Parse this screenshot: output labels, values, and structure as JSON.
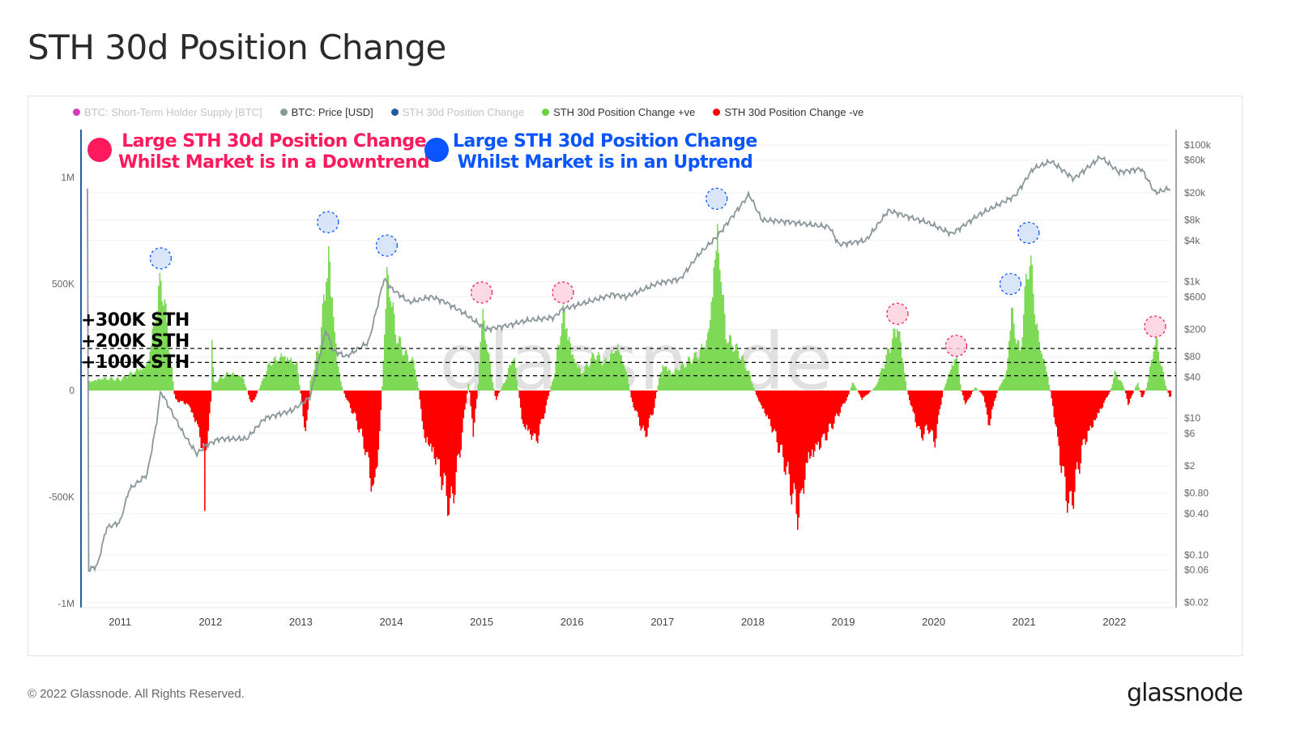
{
  "title": "STH 30d Position Change",
  "legend": [
    {
      "label": "BTC: Short-Term Holder Supply [BTC]",
      "color": "#d63bbd",
      "active": false
    },
    {
      "label": "BTC: Price [USD]",
      "color": "#8a979b",
      "active": true
    },
    {
      "label": "STH 30d Position Change",
      "color": "#1f5c9c",
      "active": false
    },
    {
      "label": "STH 30d Position Change +ve",
      "color": "#6ad13f",
      "active": true
    },
    {
      "label": "STH 30d Position Change -ve",
      "color": "#ff0000",
      "active": true
    }
  ],
  "annotations": {
    "downtrend": {
      "line1": "Large STH 30d Position Change",
      "line2": "Whilst Market is in a Downtrend",
      "color": "#ff1a5e"
    },
    "uptrend": {
      "line1": "Large STH 30d Position Change",
      "line2": "Whilst Market is in an Uptrend",
      "color": "#0a55ff"
    }
  },
  "reference_lines": [
    {
      "label": "+300K STH",
      "value": 300000
    },
    {
      "label": "+200K STH",
      "value": 200000
    },
    {
      "label": "+100K STH",
      "value": 100000
    }
  ],
  "watermark": "glassnode",
  "footer": "© 2022 Glassnode. All Rights Reserved.",
  "logo": "glassnode",
  "chart_data": {
    "type": "area",
    "title": "STH 30d Position Change",
    "x_range": [
      2010.64,
      2022.62
    ],
    "x_ticks": [
      "2011",
      "2012",
      "2013",
      "2014",
      "2015",
      "2016",
      "2017",
      "2018",
      "2019",
      "2020",
      "2021",
      "2022"
    ],
    "y_left": {
      "range": [
        -1000000,
        1000000
      ],
      "ticks": [
        {
          "v": 1000000,
          "label": "1M"
        },
        {
          "v": 500000,
          "label": "500K"
        },
        {
          "v": 0,
          "label": "0"
        },
        {
          "v": -500000,
          "label": "-500K"
        },
        {
          "v": -1000000,
          "label": "-1M"
        }
      ]
    },
    "y_right": {
      "scale": "log",
      "range": [
        0.02,
        100000
      ],
      "ticks": [
        {
          "v": 100000,
          "label": "$100k"
        },
        {
          "v": 60000,
          "label": "$60k"
        },
        {
          "v": 20000,
          "label": "$20k"
        },
        {
          "v": 8000,
          "label": "$8k"
        },
        {
          "v": 4000,
          "label": "$4k"
        },
        {
          "v": 1000,
          "label": "$1k"
        },
        {
          "v": 600,
          "label": "$600"
        },
        {
          "v": 200,
          "label": "$200"
        },
        {
          "v": 80,
          "label": "$80"
        },
        {
          "v": 40,
          "label": "$40"
        },
        {
          "v": 10,
          "label": "$10"
        },
        {
          "v": 6,
          "label": "$6"
        },
        {
          "v": 2,
          "label": "$2"
        },
        {
          "v": 0.8,
          "label": "$0.80"
        },
        {
          "v": 0.4,
          "label": "$0.40"
        },
        {
          "v": 0.1,
          "label": "$0.10"
        },
        {
          "v": 0.06,
          "label": "$0.06"
        },
        {
          "v": 0.02,
          "label": "$0.02"
        }
      ]
    },
    "grid": true,
    "legend_position": "top-left",
    "position_change": [
      [
        2010.65,
        50
      ],
      [
        2010.8,
        70
      ],
      [
        2011.0,
        60
      ],
      [
        2011.3,
        150
      ],
      [
        2011.45,
        620
      ],
      [
        2011.55,
        200
      ],
      [
        2011.6,
        -50
      ],
      [
        2011.75,
        -80
      ],
      [
        2011.85,
        -200
      ],
      [
        2011.92,
        -350
      ],
      [
        2011.93,
        -780
      ],
      [
        2011.94,
        -350
      ],
      [
        2012.0,
        -60
      ],
      [
        2012.01,
        300
      ],
      [
        2012.03,
        40
      ],
      [
        2012.2,
        100
      ],
      [
        2012.35,
        80
      ],
      [
        2012.45,
        -80
      ],
      [
        2012.55,
        30
      ],
      [
        2012.65,
        150
      ],
      [
        2012.8,
        200
      ],
      [
        2012.95,
        150
      ],
      [
        2013.0,
        -50
      ],
      [
        2013.05,
        -250
      ],
      [
        2013.1,
        50
      ],
      [
        2013.2,
        250
      ],
      [
        2013.3,
        780
      ],
      [
        2013.4,
        150
      ],
      [
        2013.45,
        20
      ],
      [
        2013.5,
        -50
      ],
      [
        2013.6,
        -150
      ],
      [
        2013.7,
        -300
      ],
      [
        2013.8,
        -580
      ],
      [
        2013.86,
        -300
      ],
      [
        2013.9,
        100
      ],
      [
        2013.95,
        680
      ],
      [
        2014.05,
        300
      ],
      [
        2014.15,
        200
      ],
      [
        2014.25,
        150
      ],
      [
        2014.3,
        0
      ],
      [
        2014.35,
        -250
      ],
      [
        2014.5,
        -400
      ],
      [
        2014.65,
        -650
      ],
      [
        2014.75,
        -350
      ],
      [
        2014.8,
        -150
      ],
      [
        2014.85,
        50
      ],
      [
        2014.9,
        -250
      ],
      [
        2014.95,
        0
      ],
      [
        2015.0,
        450
      ],
      [
        2015.1,
        100
      ],
      [
        2015.15,
        -50
      ],
      [
        2015.25,
        50
      ],
      [
        2015.35,
        200
      ],
      [
        2015.4,
        0
      ],
      [
        2015.45,
        -200
      ],
      [
        2015.6,
        -280
      ],
      [
        2015.7,
        -100
      ],
      [
        2015.8,
        100
      ],
      [
        2015.9,
        450
      ],
      [
        2016.0,
        200
      ],
      [
        2016.1,
        100
      ],
      [
        2016.25,
        200
      ],
      [
        2016.35,
        150
      ],
      [
        2016.5,
        250
      ],
      [
        2016.6,
        100
      ],
      [
        2016.65,
        -50
      ],
      [
        2016.8,
        -250
      ],
      [
        2016.9,
        -100
      ],
      [
        2016.95,
        50
      ],
      [
        2017.0,
        150
      ],
      [
        2017.1,
        100
      ],
      [
        2017.25,
        150
      ],
      [
        2017.4,
        200
      ],
      [
        2017.5,
        300
      ],
      [
        2017.6,
        900
      ],
      [
        2017.7,
        300
      ],
      [
        2017.85,
        200
      ],
      [
        2017.95,
        100
      ],
      [
        2018.05,
        -50
      ],
      [
        2018.2,
        -200
      ],
      [
        2018.35,
        -400
      ],
      [
        2018.5,
        -700
      ],
      [
        2018.6,
        -400
      ],
      [
        2018.8,
        -250
      ],
      [
        2018.95,
        -120
      ],
      [
        2019.05,
        -30
      ],
      [
        2019.1,
        50
      ],
      [
        2019.2,
        -50
      ],
      [
        2019.35,
        20
      ],
      [
        2019.45,
        150
      ],
      [
        2019.6,
        380
      ],
      [
        2019.7,
        0
      ],
      [
        2019.75,
        -100
      ],
      [
        2019.85,
        -250
      ],
      [
        2019.95,
        -200
      ],
      [
        2020.0,
        -300
      ],
      [
        2020.1,
        0
      ],
      [
        2020.2,
        150
      ],
      [
        2020.25,
        200
      ],
      [
        2020.3,
        0
      ],
      [
        2020.35,
        -80
      ],
      [
        2020.45,
        20
      ],
      [
        2020.55,
        -30
      ],
      [
        2020.6,
        -200
      ],
      [
        2020.7,
        0
      ],
      [
        2020.8,
        100
      ],
      [
        2020.85,
        450
      ],
      [
        2020.95,
        200
      ],
      [
        2021.05,
        760
      ],
      [
        2021.15,
        300
      ],
      [
        2021.25,
        100
      ],
      [
        2021.3,
        -50
      ],
      [
        2021.4,
        -400
      ],
      [
        2021.5,
        -650
      ],
      [
        2021.65,
        -300
      ],
      [
        2021.85,
        -100
      ],
      [
        2021.95,
        0
      ],
      [
        2022.0,
        100
      ],
      [
        2022.1,
        20
      ],
      [
        2022.15,
        -80
      ],
      [
        2022.25,
        50
      ],
      [
        2022.3,
        -50
      ],
      [
        2022.35,
        20
      ],
      [
        2022.45,
        300
      ],
      [
        2022.55,
        50
      ],
      [
        2022.6,
        -30
      ]
    ],
    "position_change_unit": "thousand BTC",
    "price": [
      [
        2010.65,
        0.06
      ],
      [
        2010.75,
        0.07
      ],
      [
        2010.85,
        0.25
      ],
      [
        2011.0,
        0.3
      ],
      [
        2011.1,
        0.9
      ],
      [
        2011.3,
        1.5
      ],
      [
        2011.4,
        8
      ],
      [
        2011.45,
        25
      ],
      [
        2011.55,
        14
      ],
      [
        2011.7,
        6
      ],
      [
        2011.85,
        3
      ],
      [
        2011.95,
        4
      ],
      [
        2012.1,
        5
      ],
      [
        2012.4,
        5
      ],
      [
        2012.6,
        10
      ],
      [
        2012.9,
        13
      ],
      [
        2013.1,
        20
      ],
      [
        2013.28,
        200
      ],
      [
        2013.35,
        100
      ],
      [
        2013.5,
        80
      ],
      [
        2013.75,
        130
      ],
      [
        2013.92,
        1100
      ],
      [
        2014.0,
        800
      ],
      [
        2014.2,
        500
      ],
      [
        2014.45,
        600
      ],
      [
        2014.6,
        500
      ],
      [
        2014.8,
        350
      ],
      [
        2015.05,
        200
      ],
      [
        2015.3,
        230
      ],
      [
        2015.5,
        270
      ],
      [
        2015.8,
        300
      ],
      [
        2015.9,
        400
      ],
      [
        2016.0,
        430
      ],
      [
        2016.45,
        650
      ],
      [
        2016.6,
        600
      ],
      [
        2016.95,
        950
      ],
      [
        2017.2,
        1100
      ],
      [
        2017.4,
        2500
      ],
      [
        2017.6,
        4500
      ],
      [
        2017.96,
        19000
      ],
      [
        2018.1,
        8000
      ],
      [
        2018.4,
        7500
      ],
      [
        2018.85,
        6300
      ],
      [
        2018.95,
        3500
      ],
      [
        2019.25,
        4000
      ],
      [
        2019.5,
        11000
      ],
      [
        2019.95,
        7200
      ],
      [
        2020.2,
        5000
      ],
      [
        2020.5,
        9500
      ],
      [
        2020.9,
        18000
      ],
      [
        2021.1,
        45000
      ],
      [
        2021.3,
        58000
      ],
      [
        2021.55,
        32000
      ],
      [
        2021.85,
        67000
      ],
      [
        2022.05,
        40000
      ],
      [
        2022.3,
        45000
      ],
      [
        2022.45,
        20000
      ],
      [
        2022.6,
        23000
      ]
    ],
    "highlights_uptrend": [
      [
        2011.45,
        620
      ],
      [
        2013.3,
        790
      ],
      [
        2013.95,
        680
      ],
      [
        2017.6,
        900
      ],
      [
        2020.85,
        500
      ],
      [
        2021.05,
        740
      ]
    ],
    "highlights_downtrend": [
      [
        2015.0,
        460
      ],
      [
        2015.9,
        460
      ],
      [
        2019.6,
        360
      ],
      [
        2020.25,
        210
      ],
      [
        2022.45,
        300
      ]
    ]
  }
}
